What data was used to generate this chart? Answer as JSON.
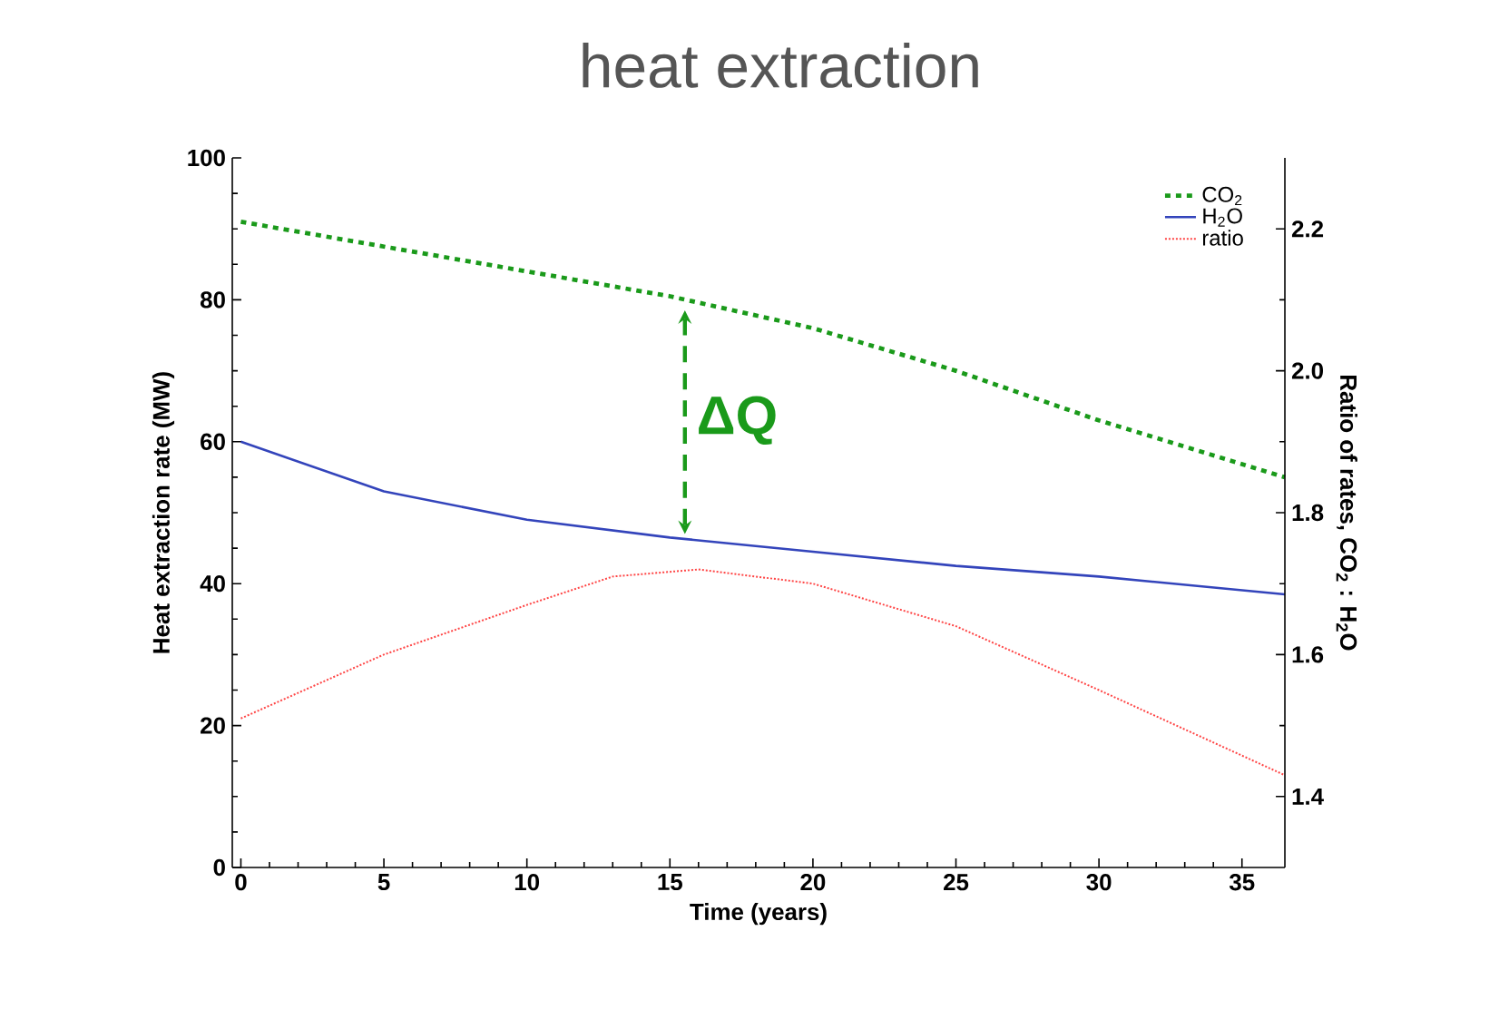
{
  "chart_data": {
    "type": "line",
    "title": "heat extraction",
    "xlabel": "Time (years)",
    "ylabel": "Heat extraction rate (MW)",
    "y2label": "Ratio of rates, CO$_{2}$ : H$_{2}$O",
    "xlim": [
      -0.3,
      36.5
    ],
    "xticks": [
      0,
      5,
      10,
      15,
      20,
      25,
      30,
      35
    ],
    "ylim": [
      0,
      100
    ],
    "yticks": [
      0,
      20,
      40,
      60,
      80,
      100
    ],
    "y2lim": [
      1.3,
      2.3
    ],
    "y2ticks": [
      1.4,
      1.6,
      1.8,
      {
        "value": 2,
        "label": "2.0"
      },
      2.2
    ],
    "legend": "top right",
    "marker": "none",
    "grid": false,
    "annotations": [
      "ΔQ"
    ],
    "series": [
      {
        "name": "CO$_{2}$",
        "color": "#1a9a1a",
        "line_style": "dashed",
        "x": [
          0,
          5,
          10,
          15,
          20,
          25,
          30,
          36.5
        ],
        "values": [
          91,
          87.5,
          84,
          80.5,
          76,
          70,
          63,
          55
        ]
      },
      {
        "name": "H$_{2}$O",
        "color": "#3344bb",
        "line_style": "solid",
        "x": [
          0,
          5,
          10,
          15,
          20,
          25,
          30,
          36.5
        ],
        "values": [
          60,
          53,
          49,
          46.5,
          44.5,
          42.5,
          41,
          38.5
        ]
      },
      {
        "name": "ratio",
        "color": "#ff4444",
        "line_style": "dotted",
        "axis": "y2",
        "x": [
          0,
          5,
          10,
          13,
          16,
          20,
          25,
          30,
          36.5
        ],
        "values": [
          1.51,
          1.6,
          1.67,
          1.71,
          1.72,
          1.7,
          1.64,
          1.55,
          1.43
        ]
      }
    ]
  }
}
